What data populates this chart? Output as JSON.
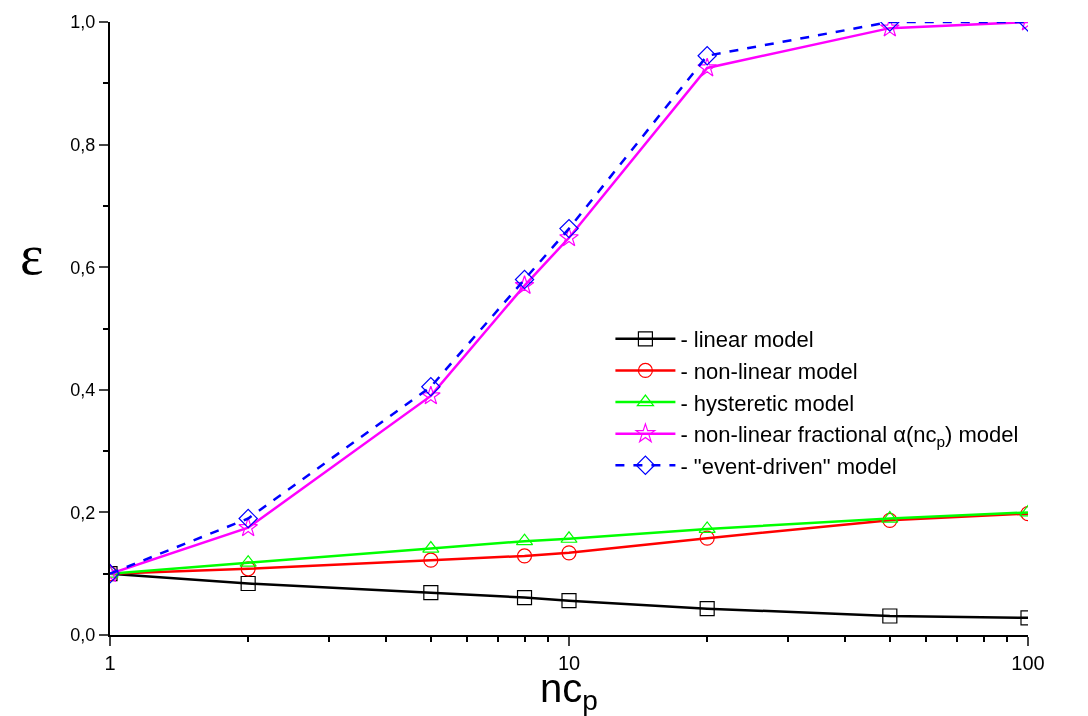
{
  "chart_data": {
    "type": "line",
    "xlabel": "nc$_{p}$",
    "ylabel": "ε",
    "log": "x",
    "legend": "right",
    "x": [
      1,
      2,
      5,
      8,
      10,
      20,
      50,
      100
    ],
    "xlim": [
      1,
      100
    ],
    "xticks": [
      1,
      10,
      100
    ],
    "ylim": [
      0,
      1.0
    ],
    "yticks": [
      {
        "value": 0,
        "label": "0,0"
      },
      {
        "value": 0.2,
        "label": "0,2"
      },
      {
        "value": 0.4,
        "label": "0,4"
      },
      {
        "value": 0.6,
        "label": "0,6"
      },
      {
        "value": 0.8,
        "label": "0,8"
      },
      {
        "value": 1.0,
        "label": "1,0"
      }
    ],
    "series": [
      {
        "name": "- linear model",
        "color": "#000000",
        "marker": "square",
        "line_style": "solid",
        "values": [
          0.1,
          0.084,
          0.069,
          0.061,
          0.056,
          0.043,
          0.031,
          0.028
        ]
      },
      {
        "name": "- non-linear model",
        "color": "#ff0000",
        "marker": "circle",
        "line_style": "solid",
        "values": [
          0.1,
          0.108,
          0.122,
          0.129,
          0.134,
          0.158,
          0.187,
          0.198
        ]
      },
      {
        "name": "- hysteretic model",
        "color": "#00ff00",
        "marker": "triangle",
        "line_style": "solid",
        "values": [
          0.1,
          0.118,
          0.141,
          0.153,
          0.157,
          0.173,
          0.19,
          0.2
        ]
      },
      {
        "name": "- non-linear fractional α(nc$_{p}$) model",
        "color": "#ff00ff",
        "marker": "star",
        "line_style": "solid",
        "values": [
          0.1,
          0.175,
          0.39,
          0.57,
          0.648,
          0.925,
          0.99,
          1.0
        ]
      },
      {
        "name": "- \"event-driven\" model",
        "color": "#0000ff",
        "marker": "diamond",
        "line_style": "dashed",
        "values": [
          0.1,
          0.19,
          0.405,
          0.58,
          0.663,
          0.945,
          1.0,
          1.0
        ]
      }
    ]
  }
}
